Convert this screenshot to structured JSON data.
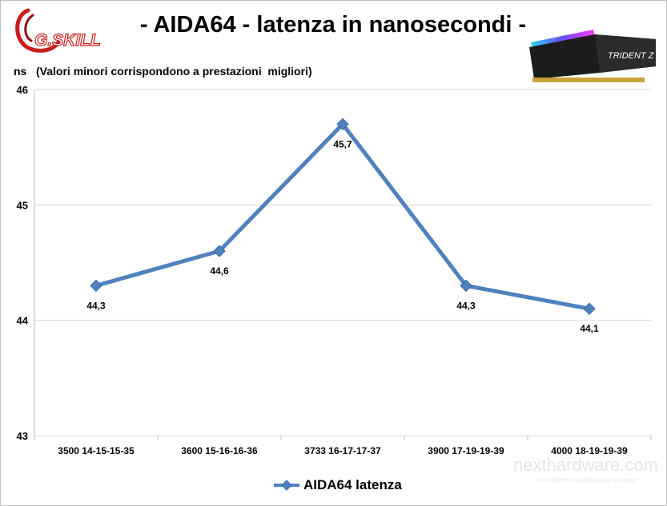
{
  "header": {
    "title": "- AIDA64 - latenza in nanosecondi -",
    "subtitle": "ns   (Valori minori corrispondono a prestazioni  migliori)",
    "logo_text": "G.SKILL",
    "product_text": "TRIDENT Z",
    "watermark_text": "nexthardware.com",
    "watermark_tagline": "your ultimate professional resource"
  },
  "colors": {
    "series": "#4f81bd",
    "marker": "#4f81bd",
    "grid": "#d9d9d9",
    "axis": "#bfbfbf",
    "logo_red": "#c81e1e"
  },
  "chart_data": {
    "type": "line",
    "categories": [
      "3500 14-15-15-35",
      "3600 15-16-16-36",
      "3733 16-17-17-37",
      "3900 17-19-19-39",
      "4000 18-19-19-39"
    ],
    "series": [
      {
        "name": "AIDA64 latenza",
        "values": [
          44.3,
          44.6,
          45.7,
          44.3,
          44.1
        ]
      }
    ],
    "data_labels": [
      "44,3",
      "44,6",
      "45,7",
      "44,3",
      "44,1"
    ],
    "ylim": [
      43,
      46
    ],
    "yticks": [
      43,
      44,
      45,
      46
    ],
    "ytick_labels": [
      "43",
      "44",
      "45",
      "46"
    ],
    "grid": true,
    "legend_position": "bottom"
  }
}
